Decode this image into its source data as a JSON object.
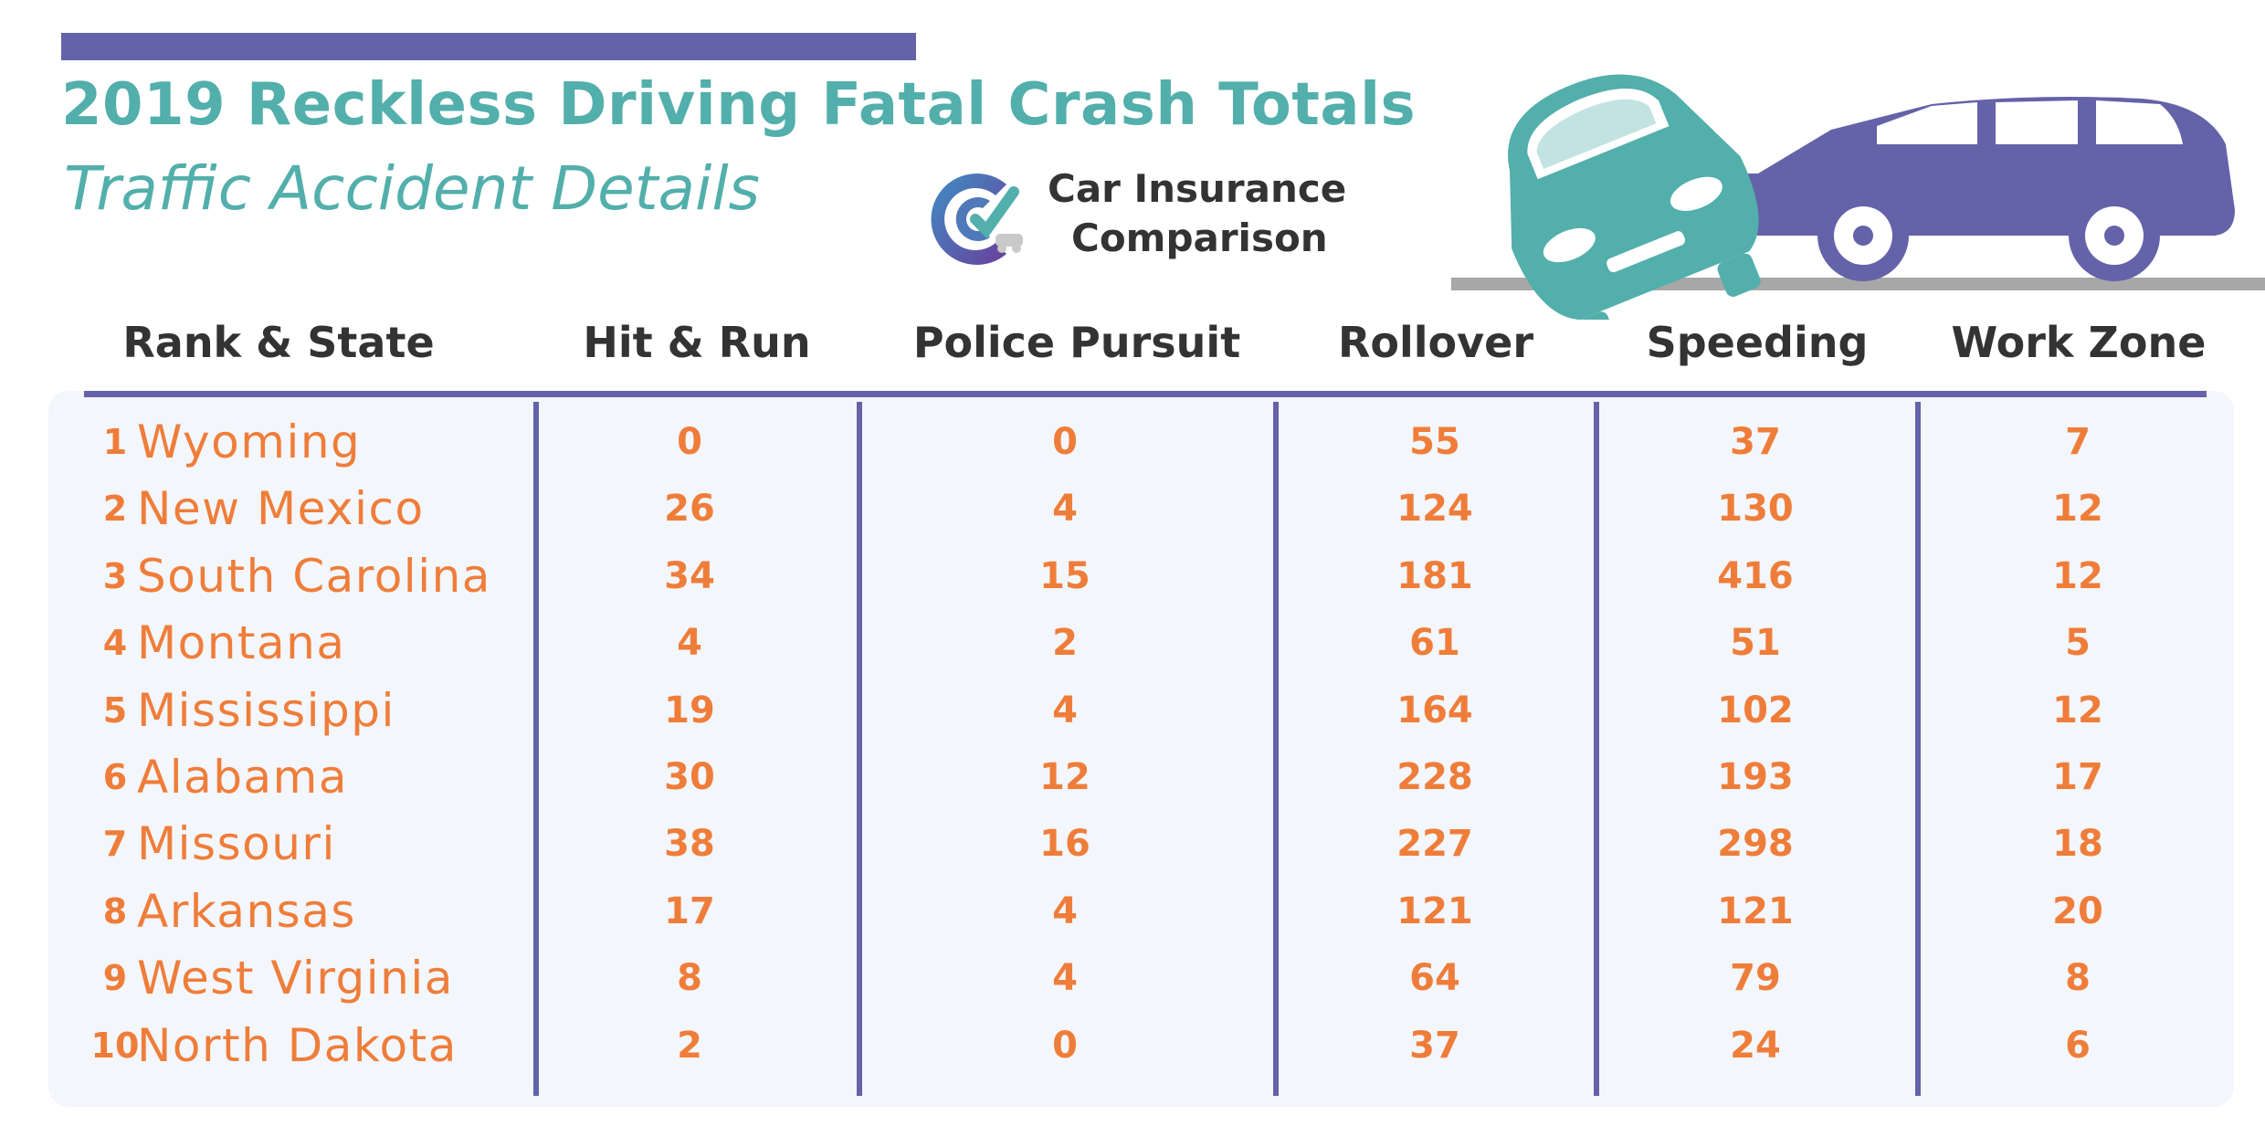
{
  "header": {
    "title": "2019 Reckless Driving Fatal Crash Totals",
    "subtitle": "Traffic Accident Details"
  },
  "logo": {
    "icon": "car-insurance-comparison-logo-icon",
    "line1": "Car Insurance",
    "line2": "Comparison"
  },
  "illustration": {
    "icon": "crashed-cars-icon"
  },
  "colors": {
    "accent_purple": "#6462a8",
    "title_teal": "#52afab",
    "value_orange": "#ef7d3a",
    "header_text": "#333333",
    "panel_bg": "#f3f6fb"
  },
  "chart_data": {
    "type": "table",
    "title": "2019 Reckless Driving Fatal Crash Totals",
    "subtitle": "Traffic Accident Details",
    "columns": [
      "Rank & State",
      "Hit & Run",
      "Police Pursuit",
      "Rollover",
      "Speeding",
      "Work Zone"
    ],
    "rows": [
      {
        "rank": "1",
        "state": "Wyoming",
        "values": [
          "0",
          "0",
          "55",
          "37",
          "7"
        ]
      },
      {
        "rank": "2",
        "state": "New Mexico",
        "values": [
          "26",
          "4",
          "124",
          "130",
          "12"
        ]
      },
      {
        "rank": "3",
        "state": "South Carolina",
        "values": [
          "34",
          "15",
          "181",
          "416",
          "12"
        ]
      },
      {
        "rank": "4",
        "state": "Montana",
        "values": [
          "4",
          "2",
          "61",
          "51",
          "5"
        ]
      },
      {
        "rank": "5",
        "state": "Mississippi",
        "values": [
          "19",
          "4",
          "164",
          "102",
          "12"
        ]
      },
      {
        "rank": "6",
        "state": "Alabama",
        "values": [
          "30",
          "12",
          "228",
          "193",
          "17"
        ]
      },
      {
        "rank": "7",
        "state": "Missouri",
        "values": [
          "38",
          "16",
          "227",
          "298",
          "18"
        ]
      },
      {
        "rank": "8",
        "state": "Arkansas",
        "values": [
          "17",
          "4",
          "121",
          "121",
          "20"
        ]
      },
      {
        "rank": "9",
        "state": "West Virginia",
        "values": [
          "8",
          "4",
          "64",
          "79",
          "8"
        ]
      },
      {
        "rank": "10",
        "state": "North Dakota",
        "values": [
          "2",
          "0",
          "37",
          "24",
          "6"
        ]
      }
    ]
  }
}
